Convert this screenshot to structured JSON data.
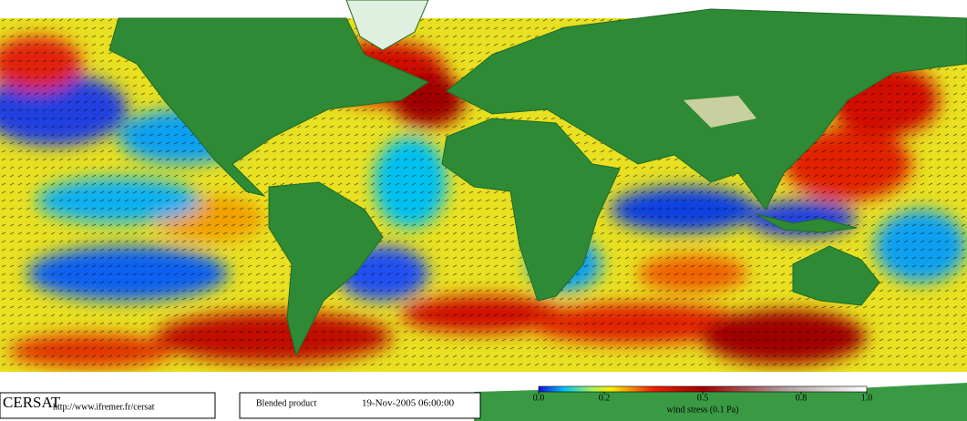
{
  "map": {
    "logo": "CERSAT",
    "url": "http://www.ifremer.fr/cersat",
    "product": "Blended product",
    "timestamp": "19-Nov-2005 06:00:00",
    "colorbar": {
      "label": "wind stress (0.1 Pa)",
      "lim": [
        0,
        1
      ],
      "ticks": [
        {
          "value": 0,
          "label": "0.0"
        },
        0.2,
        0.5,
        0.8,
        {
          "value": 1,
          "label": "1.0"
        }
      ]
    }
  }
}
